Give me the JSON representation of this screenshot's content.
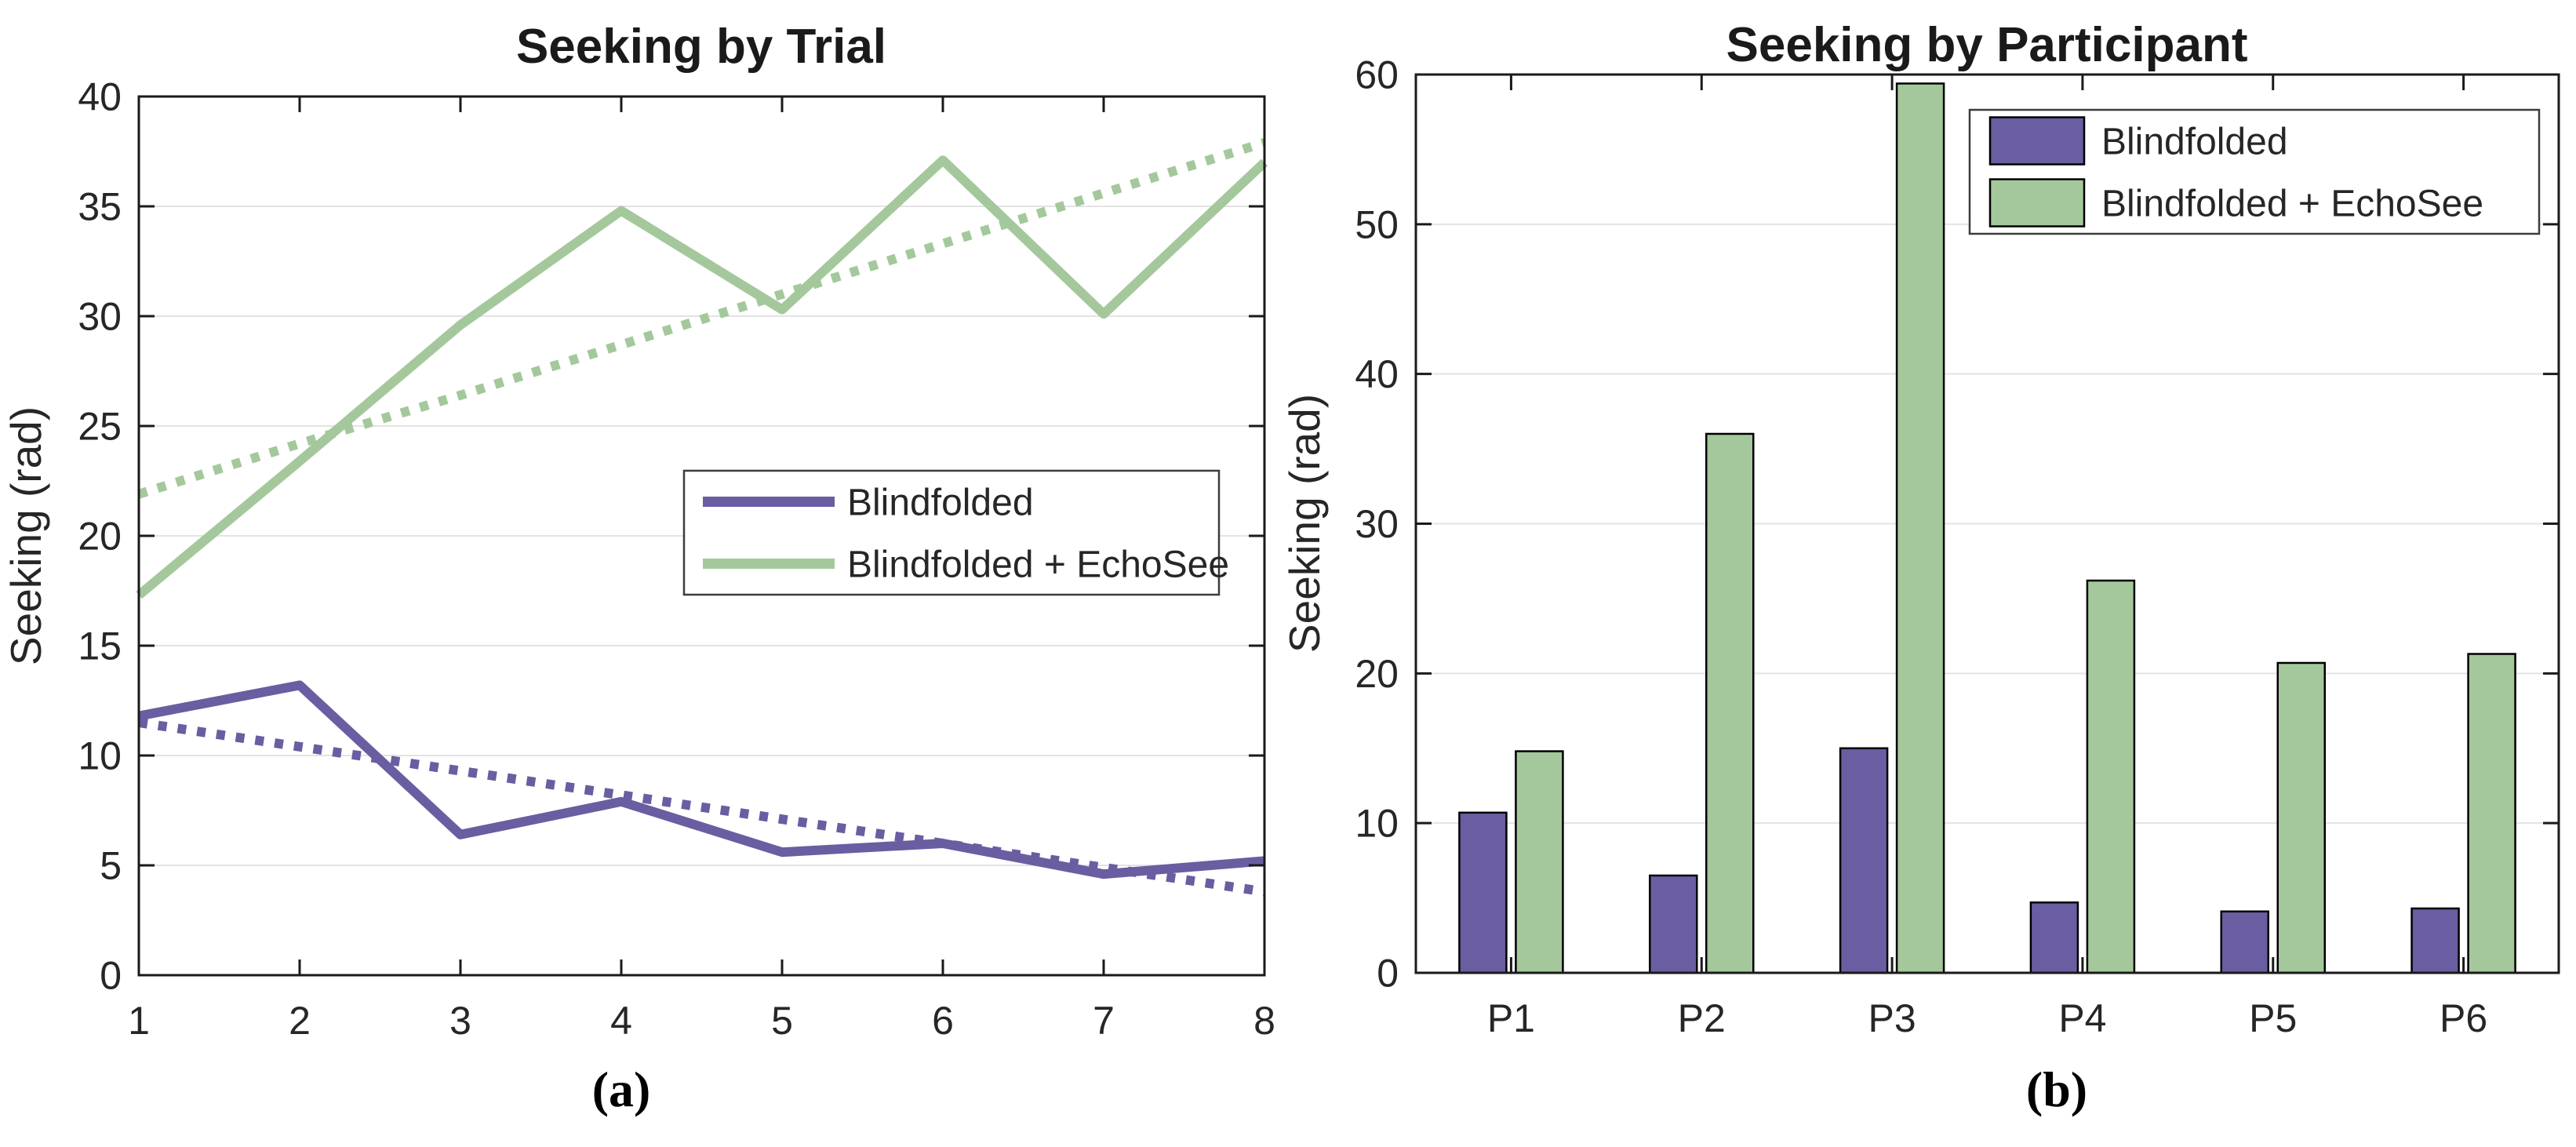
{
  "figure": {
    "background": "#FFFFFF",
    "sublabels": {
      "a": "(a)",
      "b": "(b)"
    }
  },
  "style": {
    "axis_color": "#1A1A1A",
    "text_color": "#262626",
    "grid_color": "#E3E3E3",
    "legend_border_color": "#3C3C3C",
    "bar_edge_color": "#000000",
    "purple": "#6A5DA1",
    "green": "#A4C89C"
  },
  "chart_data": [
    {
      "type": "line",
      "title": "Seeking by Trial",
      "ylabel": "Seeking (rad)",
      "xlabel": "",
      "panel_label": "(a)",
      "x": [
        1,
        2,
        3,
        4,
        5,
        6,
        7,
        8
      ],
      "xlim": [
        1,
        8
      ],
      "ylim": [
        0,
        40
      ],
      "xticks": [
        1,
        2,
        3,
        4,
        5,
        6,
        7,
        8
      ],
      "yticks": [
        0,
        5,
        10,
        15,
        20,
        25,
        30,
        35,
        40
      ],
      "grid": "horizontal",
      "legend_position": "middle-right-inside",
      "series": [
        {
          "name": "Blindfolded (trend)",
          "role": "trend",
          "style": "dotted",
          "color": "#6A5DA1",
          "values": [
            11.5,
            10.4,
            9.3,
            8.2,
            7.1,
            6.0,
            4.9,
            3.8
          ]
        },
        {
          "name": "Blindfolded + EchoSee (trend)",
          "role": "trend",
          "style": "dotted",
          "color": "#A4C89C",
          "values": [
            21.9,
            24.2,
            26.4,
            28.7,
            31.0,
            33.3,
            35.6,
            37.9
          ]
        },
        {
          "name": "Blindfolded",
          "role": "data",
          "style": "solid",
          "color": "#6A5DA1",
          "values": [
            11.8,
            13.2,
            6.4,
            7.9,
            5.6,
            6.0,
            4.6,
            5.2
          ]
        },
        {
          "name": "Blindfolded + EchoSee",
          "role": "data",
          "style": "solid",
          "color": "#A4C89C",
          "values": [
            17.3,
            23.4,
            29.6,
            34.8,
            30.3,
            37.1,
            30.1,
            37.0
          ]
        }
      ],
      "legend": [
        {
          "label": "Blindfolded",
          "color": "#6A5DA1"
        },
        {
          "label": "Blindfolded + EchoSee",
          "color": "#A4C89C"
        }
      ]
    },
    {
      "type": "bar",
      "title": "Seeking by Participant",
      "ylabel": "Seeking (rad)",
      "xlabel": "",
      "panel_label": "(b)",
      "categories": [
        "P1",
        "P2",
        "P3",
        "P4",
        "P5",
        "P6"
      ],
      "ylim": [
        0,
        60
      ],
      "yticks": [
        0,
        10,
        20,
        30,
        40,
        50,
        60
      ],
      "grid": "horizontal",
      "legend_position": "top-right-inside",
      "series": [
        {
          "name": "Blindfolded",
          "color": "#6A5DA1",
          "values": [
            10.7,
            6.5,
            15.0,
            4.7,
            4.1,
            4.3
          ]
        },
        {
          "name": "Blindfolded + EchoSee",
          "color": "#A4C89C",
          "values": [
            14.8,
            36.0,
            59.4,
            26.2,
            20.7,
            21.3
          ]
        }
      ],
      "legend": [
        {
          "label": "Blindfolded",
          "color": "#6A5DA1"
        },
        {
          "label": "Blindfolded + EchoSee",
          "color": "#A4C89C"
        }
      ]
    }
  ]
}
